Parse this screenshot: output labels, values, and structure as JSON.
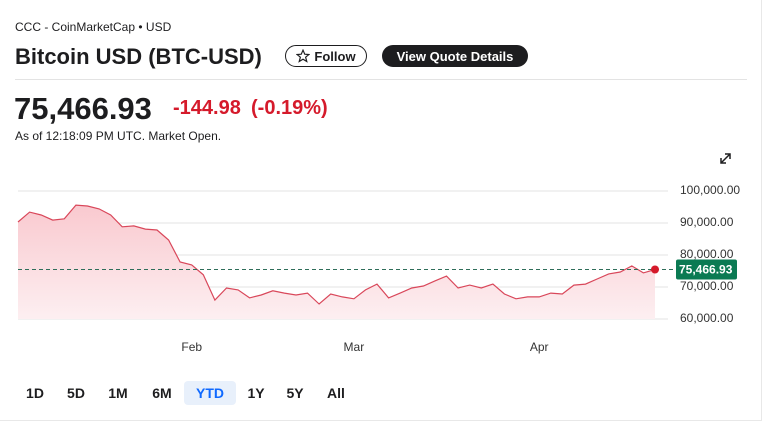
{
  "header": {
    "source": "CCC - CoinMarketCap • USD",
    "title": "Bitcoin USD (BTC-USD)",
    "follow": "Follow",
    "quote_button": "View Quote Details",
    "price": "75,466.93",
    "change": "-144.98",
    "change_pct": "(-0.19%)",
    "as_of": "As of 12:18:09 PM UTC. Market Open."
  },
  "chart_data": {
    "type": "line",
    "categories": [
      null,
      null,
      null,
      null,
      null,
      null,
      null,
      null,
      null,
      null,
      null,
      null,
      null,
      null,
      null,
      "Feb",
      null,
      null,
      null,
      null,
      null,
      null,
      null,
      null,
      null,
      null,
      null,
      null,
      null,
      "Mar",
      null,
      null,
      null,
      null,
      null,
      null,
      null,
      null,
      null,
      null,
      null,
      null,
      null,
      null,
      null,
      "Apr",
      null,
      null,
      null,
      null,
      null,
      null,
      null,
      null,
      null,
      null
    ],
    "series": [
      {
        "color": "#d9475a",
        "values": [
          90300,
          93400,
          92500,
          90900,
          91300,
          95600,
          95300,
          94400,
          92500,
          88800,
          89100,
          88100,
          87800,
          84700,
          77800,
          76900,
          73800,
          65900,
          69700,
          69100,
          66600,
          67500,
          68800,
          68100,
          67500,
          68100,
          64700,
          67800,
          66900,
          66300,
          69100,
          70900,
          66600,
          68100,
          69700,
          70300,
          71900,
          73400,
          69700,
          70600,
          69700,
          70900,
          67800,
          66300,
          66900,
          66900,
          68100,
          67800,
          70600,
          70900,
          72500,
          74100,
          74700,
          76600,
          74400,
          75466.93
        ]
      }
    ],
    "ylim": [
      60000,
      100000
    ],
    "yticks": [
      {
        "value": 60000,
        "label": "60,000.00"
      },
      {
        "value": 70000,
        "label": "70,000.00"
      },
      {
        "value": 80000,
        "label": "80,000.00"
      },
      {
        "value": 90000,
        "label": "90,000.00"
      },
      {
        "value": 100000,
        "label": "100,000.00"
      }
    ],
    "grid": true,
    "last_label": {
      "value": 75466.93,
      "label": "75,466.93"
    },
    "ranges": [
      "1D",
      "5D",
      "1M",
      "6M",
      "YTD",
      "1Y",
      "5Y",
      "All"
    ],
    "active_range": "YTD"
  }
}
